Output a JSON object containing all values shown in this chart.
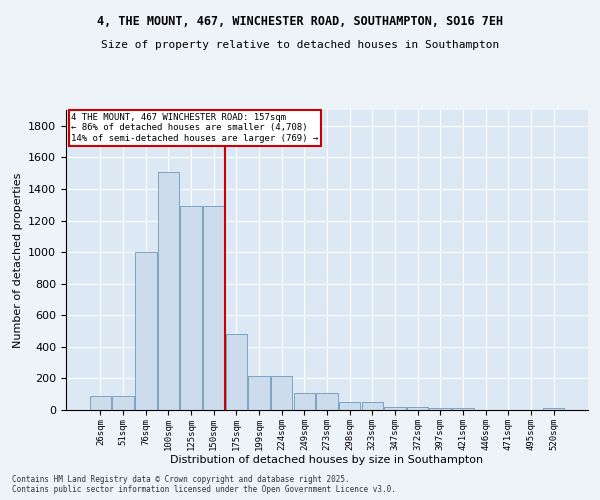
{
  "title1": "4, THE MOUNT, 467, WINCHESTER ROAD, SOUTHAMPTON, SO16 7EH",
  "title2": "Size of property relative to detached houses in Southampton",
  "xlabel": "Distribution of detached houses by size in Southampton",
  "ylabel": "Number of detached properties",
  "categories": [
    "26sqm",
    "51sqm",
    "76sqm",
    "100sqm",
    "125sqm",
    "150sqm",
    "175sqm",
    "199sqm",
    "224sqm",
    "249sqm",
    "273sqm",
    "298sqm",
    "323sqm",
    "347sqm",
    "372sqm",
    "397sqm",
    "421sqm",
    "446sqm",
    "471sqm",
    "495sqm",
    "520sqm"
  ],
  "values": [
    90,
    90,
    1000,
    1510,
    1290,
    1290,
    480,
    215,
    215,
    110,
    110,
    50,
    50,
    20,
    20,
    15,
    15,
    0,
    0,
    0,
    15
  ],
  "bar_color": "#ccdcec",
  "bar_edge_color": "#6a9ab8",
  "vline_color": "#cc0000",
  "vline_pos": 5.5,
  "annotation_text": "4 THE MOUNT, 467 WINCHESTER ROAD: 157sqm\n← 86% of detached houses are smaller (4,708)\n14% of semi-detached houses are larger (769) →",
  "annotation_box_color": "#ffffff",
  "annotation_border_color": "#cc0000",
  "ylim": [
    0,
    1900
  ],
  "yticks": [
    0,
    200,
    400,
    600,
    800,
    1000,
    1200,
    1400,
    1600,
    1800
  ],
  "bg_color": "#dce9f5",
  "grid_color": "#ffffff",
  "title_fontsize": 8.5,
  "subtitle_fontsize": 8,
  "footnote1": "Contains HM Land Registry data © Crown copyright and database right 2025.",
  "footnote2": "Contains public sector information licensed under the Open Government Licence v3.0."
}
